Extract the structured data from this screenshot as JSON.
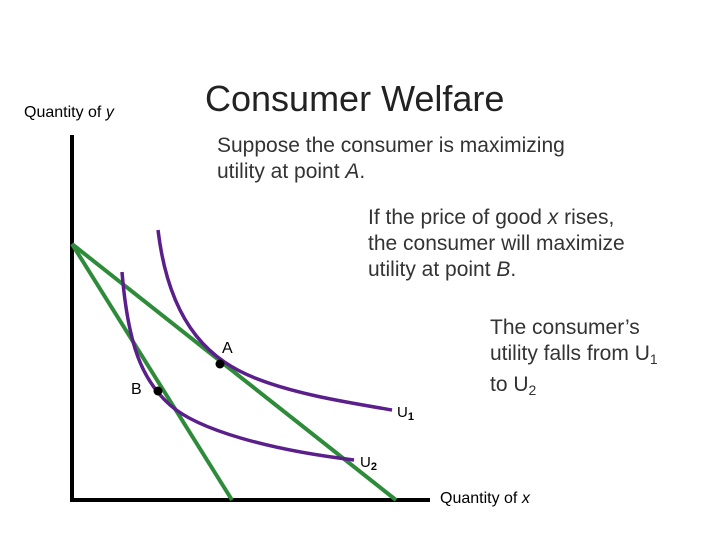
{
  "title": "Consumer Welfare",
  "axes": {
    "y_label_prefix": "Quantity of ",
    "y_label_var": "y",
    "x_label_prefix": "Quantity of ",
    "x_label_var": "x"
  },
  "text1": {
    "line1": "Suppose the consumer is maximizing",
    "line2_prefix": "utility at point ",
    "line2_var": "A",
    "line2_suffix": "."
  },
  "text2": {
    "line1_prefix": "If the price of good ",
    "line1_var": "x",
    "line1_suffix": " rises,",
    "line2": "the consumer will maximize",
    "line3_prefix": "utility at point ",
    "line3_var": "B",
    "line3_suffix": "."
  },
  "text3": {
    "line1": "The consumer’s",
    "line2_prefix": "utility falls from U",
    "line2_sub": "1",
    "line3_prefix": "to U",
    "line3_sub": "2"
  },
  "points": {
    "a_label": "A",
    "b_label": "B"
  },
  "curves": {
    "u1_label": "U",
    "u1_sub": "1",
    "u2_label": "U",
    "u2_sub": "2"
  },
  "colors": {
    "budget_line": "#2e8b3a",
    "indifference_curve": "#5a1f8a",
    "axis": "#000000"
  }
}
